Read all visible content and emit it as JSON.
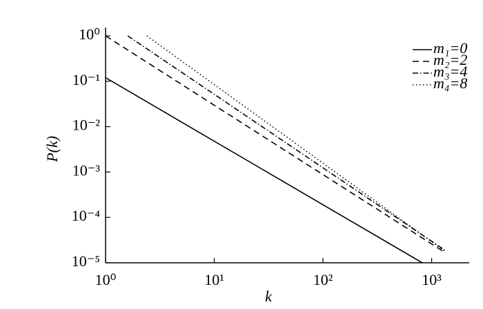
{
  "chart_data": {
    "type": "line",
    "log_x": true,
    "log_y": true,
    "x_label": "k",
    "y_label": "P(k)",
    "xlim": [
      1,
      2000
    ],
    "ylim": [
      1e-05,
      1
    ],
    "xticks": [
      {
        "value": 1,
        "label": "10⁰"
      },
      {
        "value": 10,
        "label": "10¹"
      },
      {
        "value": 100,
        "label": "10²"
      },
      {
        "value": 1000,
        "label": "10³"
      }
    ],
    "yticks": [
      {
        "value": 1e-05,
        "label": "10⁻⁵"
      },
      {
        "value": 0.0001,
        "label": "10⁻⁴"
      },
      {
        "value": 0.001,
        "label": "10⁻³"
      },
      {
        "value": 0.01,
        "label": "10⁻²"
      },
      {
        "value": 0.1,
        "label": "10⁻¹"
      },
      {
        "value": 1,
        "label": "10⁰"
      }
    ],
    "legend": "upper right",
    "series": [
      {
        "name": "m₁=0",
        "color": "#000000",
        "style": "solid",
        "x": [
          1,
          820
        ],
        "values": [
          0.12,
          1e-05
        ]
      },
      {
        "name": "m₂=2",
        "color": "#000000",
        "style": "dashed",
        "x": [
          1,
          1320
        ],
        "values": [
          1,
          1.7e-05
        ]
      },
      {
        "name": "m₃=4",
        "color": "#000000",
        "style": "dashdot",
        "x": [
          1.6,
          1320
        ],
        "values": [
          1,
          1.9e-05
        ]
      },
      {
        "name": "m₄=8",
        "color": "#000000",
        "style": "dotted",
        "x": [
          2.4,
          1320
        ],
        "values": [
          1,
          1.8e-05
        ]
      }
    ]
  }
}
